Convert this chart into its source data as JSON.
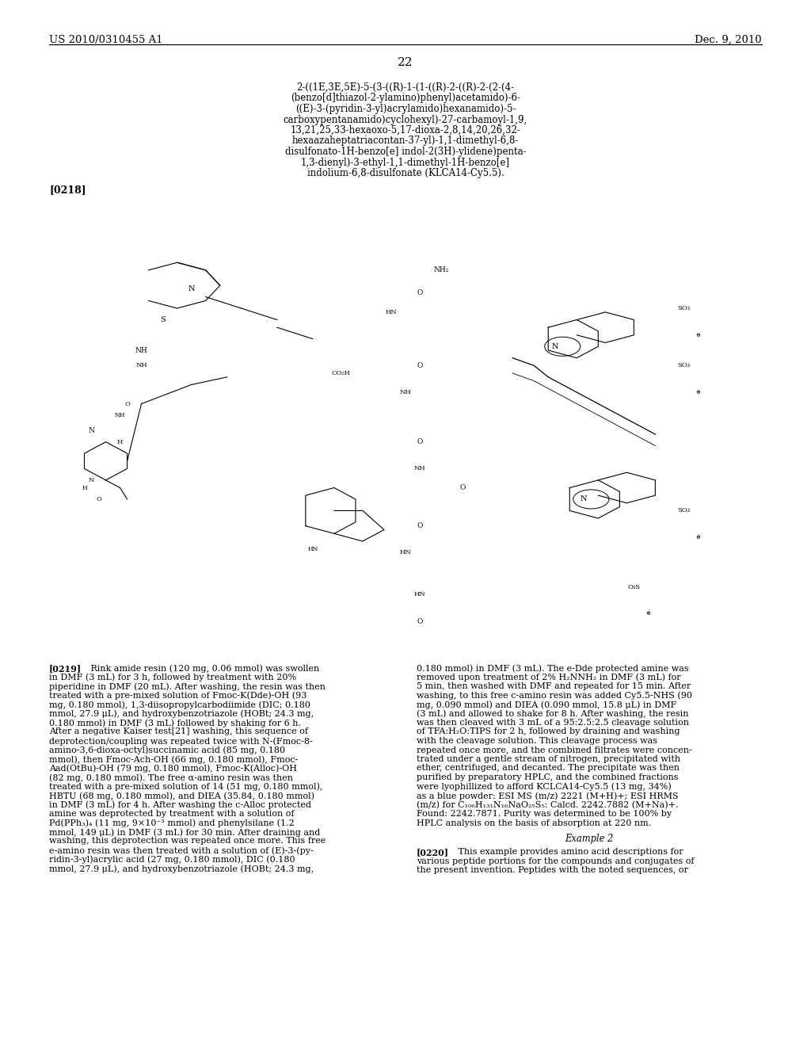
{
  "header_left": "US 2010/0310455 A1",
  "header_right": "Dec. 9, 2010",
  "page_number": "22",
  "chem_name_lines": [
    "2-((1E,3E,5E)-5-(3-((R)-1-(1-((R)-2-((R)-2-(2-(4-",
    "(benzo[d]thiazol-2-ylamino)phenyl)acetamido)-6-",
    "((E)-3-(pyridin-3-yl)acrylamido)hexanamido)-5-",
    "carboxypentanamido)cyclohexyl)-27-carbamoyl-1,9,",
    "13,21,25,33-hexaoxo-5,17-dioxa-2,8,14,20,26,32-",
    "hexaazaheptatriacontan-37-yl)-1,1-dimethyl-6,8-",
    "disulfonato-1H-benzo[e] indol-2(3H)-ylidene)penta-",
    "1,3-dienyl)-3-ethyl-1,1-dimethyl-1H-benzo[e]",
    "indolium-6,8-disulfonate (KLCA14-Cy5.5)."
  ],
  "label_0218": "[0218]",
  "left_col_lines": [
    "[0219]",
    "   Rink amide resin (120 mg, 0.06 mmol) was swollen",
    "in DMF (3 mL) for 3 h, followed by treatment with 20%",
    "piperidine in DMF (20 mL). After washing, the resin was then",
    "treated with a pre-mixed solution of Fmoc-K(Dde)-OH (93",
    "mg, 0.180 mmol), 1,3-diisopropylcarbodiimide (DIC; 0.180",
    "mmol, 27.9 μL), and hydroxybenzotriazole (HOBt; 24.3 mg,",
    "0.180 mmol) in DMF (3 mL) followed by shaking for 6 h.",
    "After a negative Kaiser test[21] washing, this sequence of",
    "deprotection/coupling was repeated twice with N-(Fmoc-8-",
    "amino-3,6-dioxa-octyl)succinamic acid (85 mg, 0.180",
    "mmol), then Fmoc-Ach-OH (66 mg, 0.180 mmol), Fmoc-",
    "Aad(OtBu)-OH (79 mg, 0.180 mmol), Fmoc-K(Alloc)-OH",
    "(82 mg, 0.180 mmol). The free α-amino resin was then",
    "treated with a pre-mixed solution of 14 (51 mg, 0.180 mmol),",
    "HBTU (68 mg, 0.180 mmol), and DIEA (35.84, 0.180 mmol)",
    "in DMF (3 mL) for 4 h. After washing the c-Alloc protected",
    "amine was deprotected by treatment with a solution of",
    "Pd(PPh₃)₄ (11 mg, 9×10⁻³ mmol) and phenylsilane (1.2",
    "mmol, 149 μL) in DMF (3 mL) for 30 min. After draining and",
    "washing, this deprotection was repeated once more. This free",
    "e-amino resin was then treated with a solution of (E)-3-(py-",
    "ridin-3-yl)acrylic acid (27 mg, 0.180 mmol), DIC (0.180",
    "mmol, 27.9 μL), and hydroxybenzotriazole (HOBt; 24.3 mg,"
  ],
  "right_col_lines": [
    "0.180 mmol) in DMF (3 mL). The e-Dde protected amine was",
    "removed upon treatment of 2% H₂NNH₂ in DMF (3 mL) for",
    "5 min, then washed with DMF and repeated for 15 min. After",
    "washing, to this free c-amino resin was added Cy5.5-NHS (90",
    "mg, 0.090 mmol) and DIEA (0.090 mmol, 15.8 μL) in DMF",
    "(3 mL) and allowed to shake for 8 h. After washing, the resin",
    "was then cleaved with 3 mL of a 95:2.5:2.5 cleavage solution",
    "of TFA:H₂O:TIPS for 2 h, followed by draining and washing",
    "with the cleavage solution. This cleavage process was",
    "repeated once more, and the combined filtrates were concen-",
    "trated under a gentle stream of nitrogen, precipitated with",
    "ether, centrifuged, and decanted. The precipitate was then",
    "purified by preparatory HPLC, and the combined fractions",
    "were lyophillized to afford KCLCA14-Cy5.5 (13 mg, 34%)",
    "as a blue powder: ESI MS (m/z) 2221 (M+H)+; ESI HRMS",
    "(m/z) for C₁₀₆H₁₃₁N₁₆NaO₂₅S₅: Calcd. 2242.7882 (M+Na)+.",
    "Found: 2242.7871. Purity was determined to be 100% by",
    "HPLC analysis on the basis of absorption at 220 nm.",
    "",
    "Example 2",
    "",
    "[0220]",
    "   This example provides amino acid descriptions for",
    "various peptide portions for the compounds and conjugates of",
    "the present invention. Peptides with the noted sequences, or"
  ],
  "background_color": "#ffffff"
}
